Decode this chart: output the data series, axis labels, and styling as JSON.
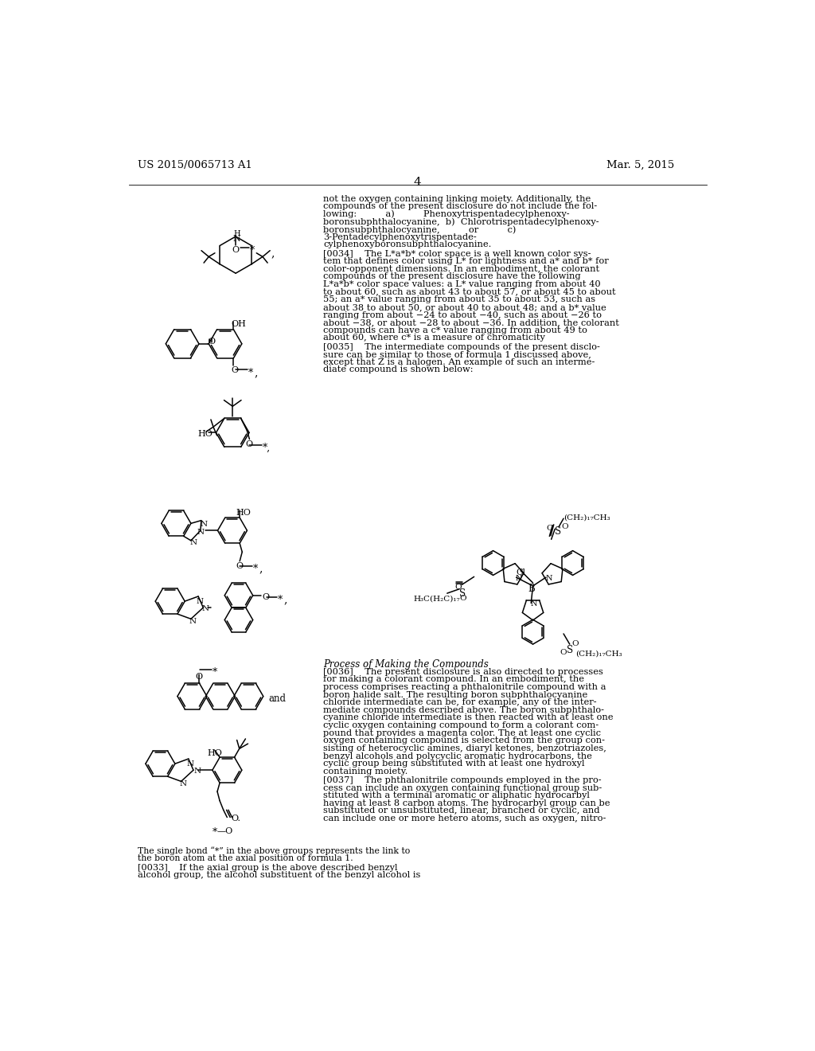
{
  "page_number": "4",
  "patent_number": "US 2015/0065713 A1",
  "patent_date": "Mar. 5, 2015",
  "bg_color": "#ffffff",
  "right_col_para1": [
    "not the oxygen containing linking moiety. Additionally, the",
    "compounds of the present disclosure do not include the fol-",
    "lowing:          a)          Phenoxytrispentadecylphenoxy-",
    "boronsubphthalocyanine,  b)  Chlorotrispentadecylphenoxy-",
    "boronsubphthalocyanine,          or          c)",
    "3-Pentadecylphenoxytrispentade-",
    "cylphenoxyboronsubphthalocyanine."
  ],
  "right_col_para2": [
    "[0034]    The L*a*b* color space is a well known color sys-",
    "tem that defines color using L* for lightness and a* and b* for",
    "color-opponent dimensions. In an embodiment, the colorant",
    "compounds of the present disclosure have the following",
    "L*a*b* color space values: a L* value ranging from about 40",
    "to about 60, such as about 43 to about 57, or about 45 to about",
    "55; an a* value ranging from about 35 to about 53, such as",
    "about 38 to about 50, or about 40 to about 48; and a b* value",
    "ranging from about −24 to about −40, such as about −26 to",
    "about −38, or about −28 to about −36. In addition, the colorant",
    "compounds can have a c* value ranging from about 49 to",
    "about 60, where c* is a measure of chromaticity"
  ],
  "right_col_para3": [
    "[0035]    The intermediate compounds of the present disclo-",
    "sure can be similar to those of formula 1 discussed above,",
    "except that Z is a halogen. An example of such an interme-",
    "diate compound is shown below:"
  ],
  "section_title": "Process of Making the Compounds",
  "right_col_para4": [
    "[0036]    The present disclosure is also directed to processes",
    "for making a colorant compound. In an embodiment, the",
    "process comprises reacting a phthalonitrile compound with a",
    "boron halide salt. The resulting boron subphthalocyanine",
    "chloride intermediate can be, for example, any of the inter-",
    "mediate compounds described above. The boron subphthalo-",
    "cyanine chloride intermediate is then reacted with at least one",
    "cyclic oxygen containing compound to form a colorant com-",
    "pound that provides a magenta color. The at least one cyclic",
    "oxygen containing compound is selected from the group con-",
    "sisting of heterocyclic amines, diaryl ketones, benzotriazoles,",
    "benzyl alcohols and polycyclic aromatic hydrocarbons, the",
    "cyclic group being substituted with at least one hydroxyl",
    "containing moiety."
  ],
  "right_col_para5": [
    "[0037]    The phthalonitrile compounds employed in the pro-",
    "cess can include an oxygen containing functional group sub-",
    "stituted with a terminal aromatic or aliphatic hydrocarbyl",
    "having at least 8 carbon atoms. The hydrocarbyl group can be",
    "substituted or unsubstituted, linear, branched or cyclic, and",
    "can include one or more hetero atoms, such as oxygen, nitro-"
  ],
  "caption1": "The single bond “*” in the above groups represents the link to",
  "caption2": "the boron atom at the axial position of formula 1.",
  "para0033_1": "[0033]    If the axial group is the above described benzyl",
  "para0033_2": "alcohol group, the alcohol substituent of the benzyl alcohol is"
}
